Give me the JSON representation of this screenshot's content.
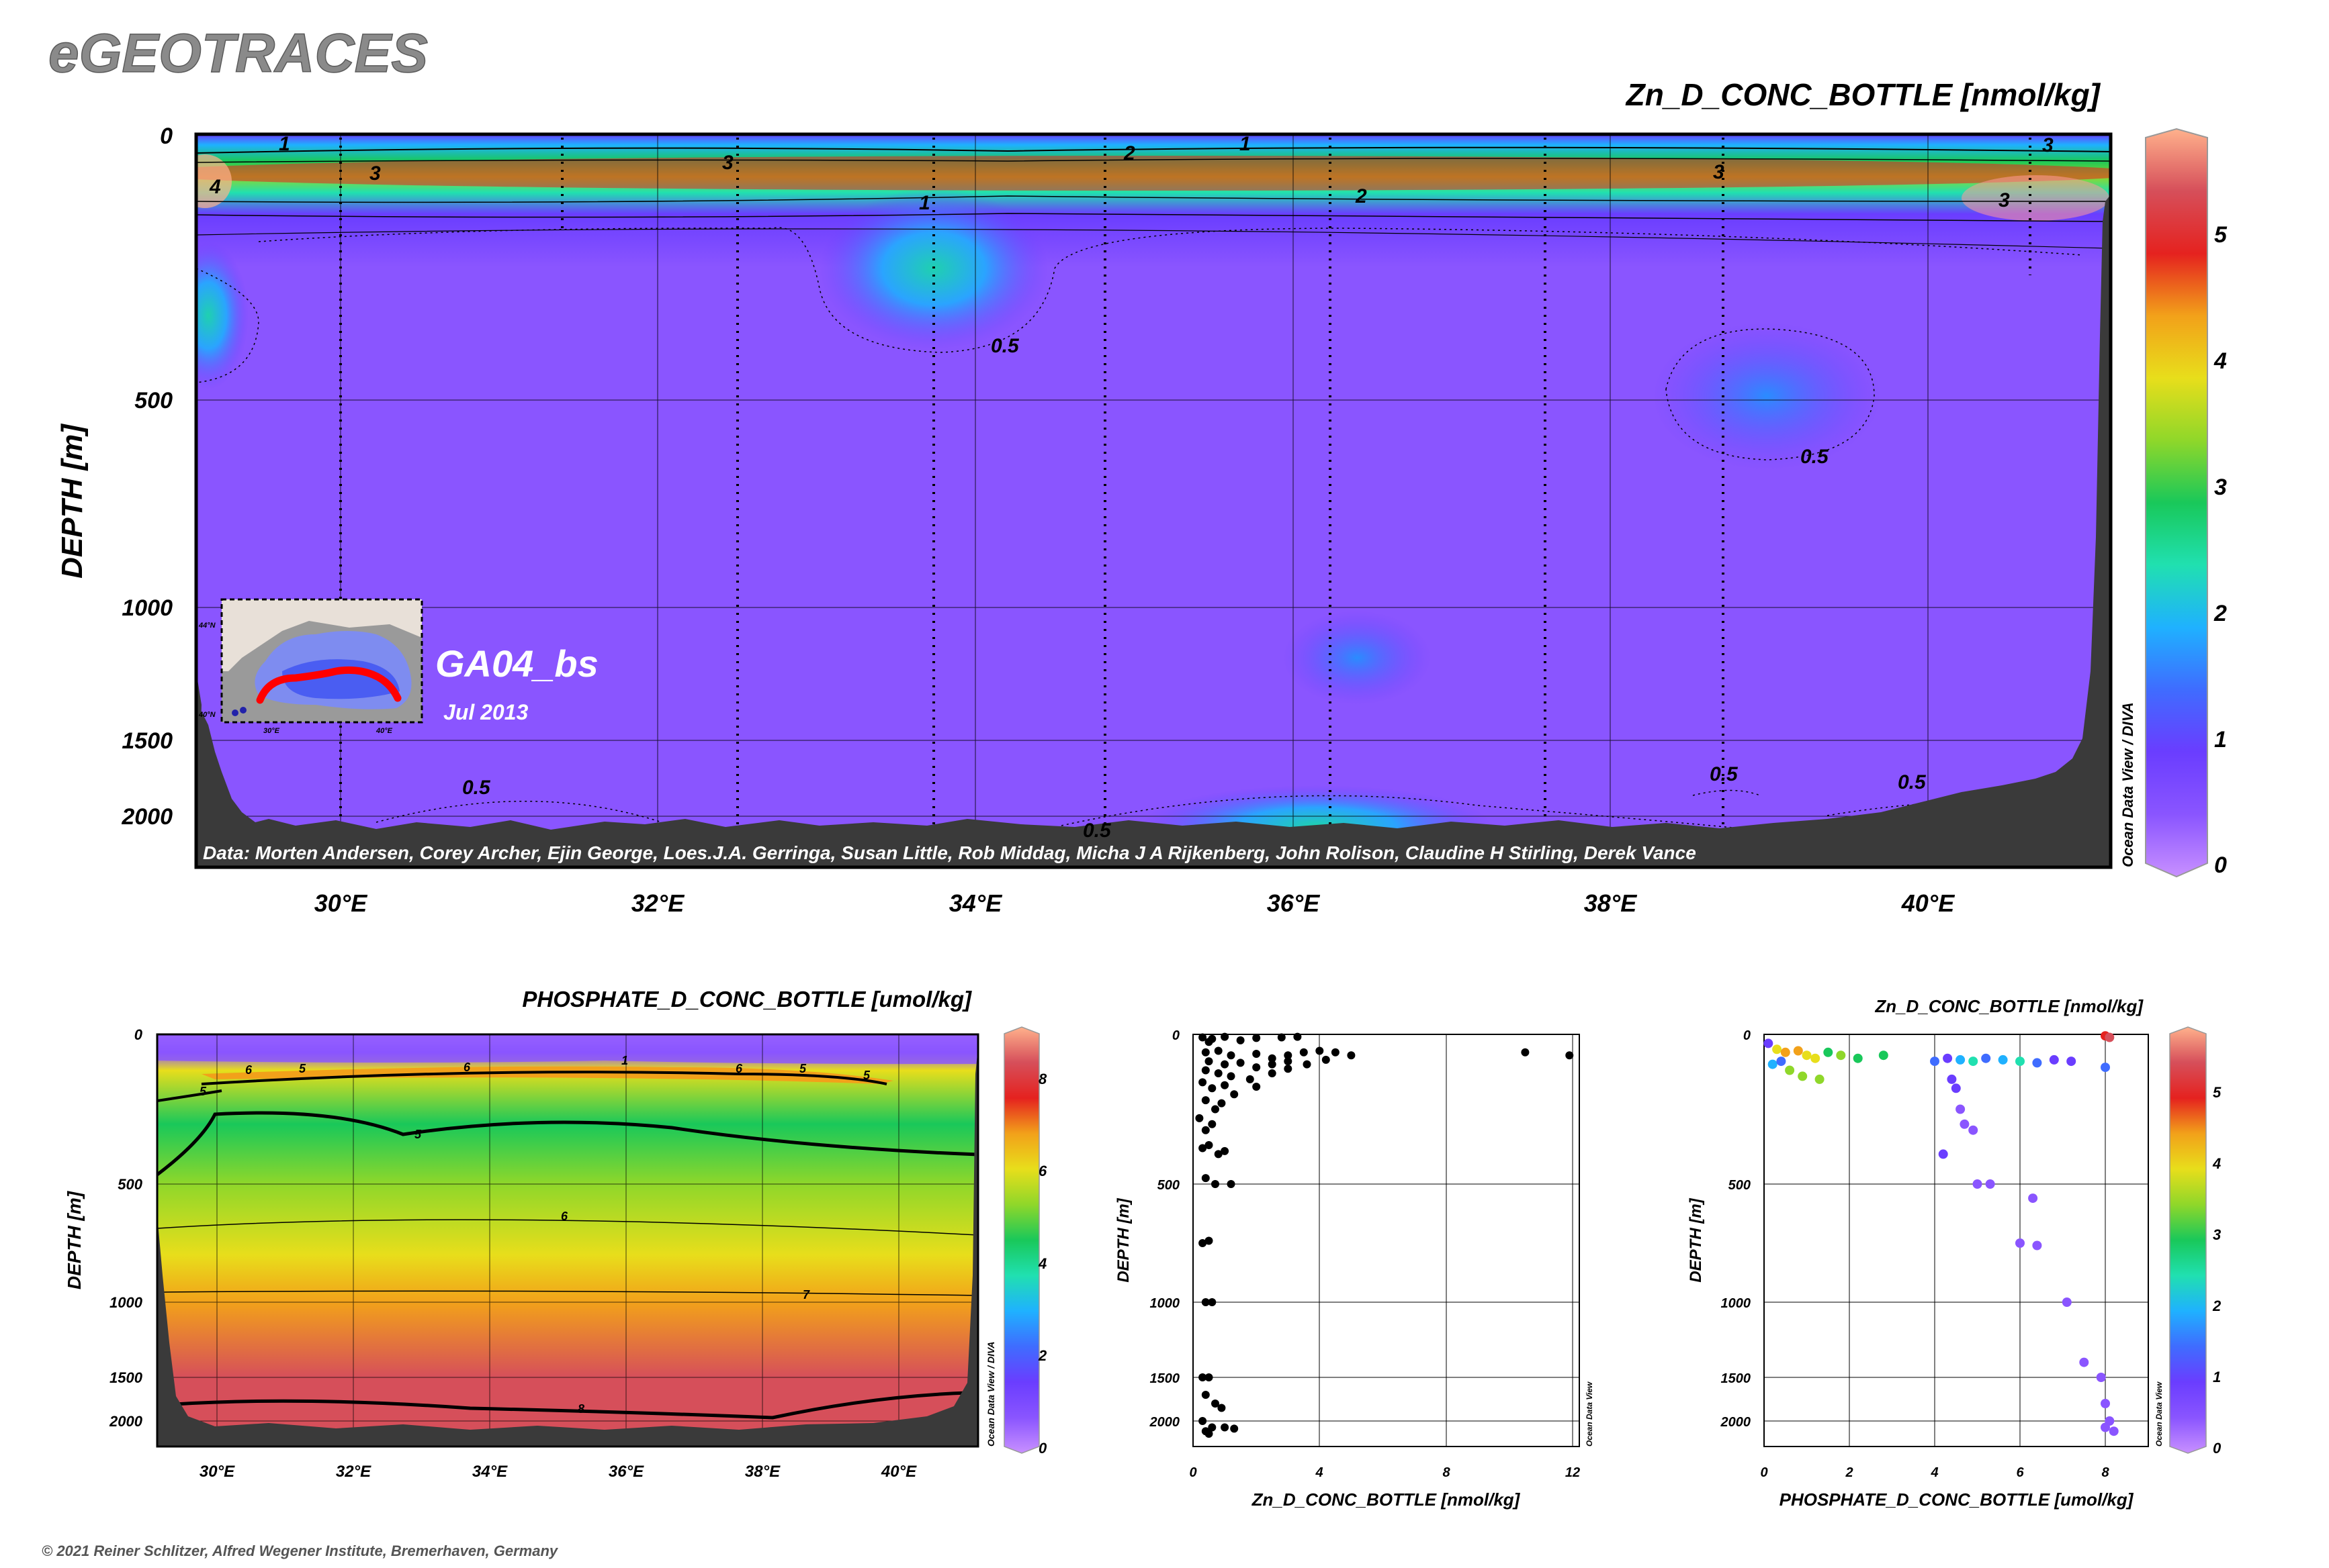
{
  "brand": "eGEOTRACES",
  "copyright": "© 2021 Reiner Schlitzer, Alfred Wegener Institute, Bremerhaven, Germany",
  "colors": {
    "sea_floor": "#3a3a3a",
    "background": "#ffffff",
    "cruise_track": "#ff0000"
  },
  "colormap": [
    "#c890ff",
    "#8a55ff",
    "#6a3dff",
    "#3f6cff",
    "#1fb1ff",
    "#20e0b0",
    "#19c85a",
    "#8fd72a",
    "#e8de1b",
    "#f2a11a",
    "#e5221f",
    "#d64f5a",
    "#ffb18c"
  ],
  "main": {
    "title": "Zn_D_CONC_BOTTLE [nmol/kg]",
    "ylabel": "DEPTH [m]",
    "section_name": "GA04_bs",
    "date": "Jul 2013",
    "credits": "Data: Morten Andersen, Corey Archer, Ejin George, Loes.J.A. Gerringa, Susan Little, Rob Middag, Micha J A Rijkenberg, John Rolison, Claudine H Stirling, Derek Vance",
    "odv_label": "Ocean Data View / DIVA",
    "colorbar_ticks": [
      "0",
      "1",
      "2",
      "3",
      "4",
      "5"
    ],
    "contour_labels": [
      "1",
      "3",
      "4",
      "3",
      "3",
      "1",
      "2",
      "1",
      "2",
      "3",
      "3",
      "2",
      "0.5",
      "0.5",
      "0.5",
      "0.5",
      "0.5",
      "0.5"
    ],
    "inset": {
      "lat_labels": [
        "44°N",
        "40°N"
      ],
      "lon_labels": [
        "30°E",
        "40°E"
      ]
    }
  },
  "chart_data": [
    {
      "type": "heatmap",
      "title": "Zn_D_CONC_BOTTLE [nmol/kg]",
      "xlabel": "",
      "ylabel": "DEPTH [m]",
      "x_ticks": [
        "30°E",
        "32°E",
        "34°E",
        "36°E",
        "38°E",
        "40°E"
      ],
      "y_ticks": [
        "0",
        "500",
        "1000",
        "1500",
        "2000"
      ],
      "xlim": [
        29.1,
        41.1
      ],
      "colorbar_range": [
        0,
        5.8
      ],
      "colorbar_ticks": [
        "0",
        "1",
        "2",
        "3",
        "4",
        "5"
      ],
      "description_values": {
        "depth_m": [
          0,
          20,
          50,
          80,
          110,
          150,
          250,
          500,
          1000,
          2000
        ],
        "zn_nmol_kg": [
          1.2,
          1.8,
          3.0,
          3.4,
          2.2,
          1.0,
          0.45,
          0.45,
          0.45,
          0.55
        ]
      },
      "grid": true
    },
    {
      "type": "heatmap",
      "title": "PHOSPHATE_D_CONC_BOTTLE [umol/kg]",
      "ylabel": "DEPTH [m]",
      "x_ticks": [
        "30°E",
        "32°E",
        "34°E",
        "36°E",
        "38°E",
        "40°E"
      ],
      "y_ticks": [
        "0",
        "500",
        "1000",
        "1500",
        "2000"
      ],
      "colorbar_range": [
        0,
        9
      ],
      "colorbar_ticks": [
        "0",
        "2",
        "4",
        "6",
        "8"
      ],
      "contour_labels": [
        "5",
        "6",
        "5",
        "1",
        "6",
        "5",
        "6",
        "5",
        "5",
        "6",
        "7",
        "8",
        "6",
        "6",
        "6"
      ],
      "odv_label": "Ocean Data View / DIVA",
      "description_values": {
        "depth_m": [
          0,
          60,
          120,
          300,
          500,
          800,
          1000,
          1500,
          2000
        ],
        "phosphate_umol_kg": [
          0.2,
          1.0,
          6.3,
          4.8,
          5.5,
          6.0,
          7.0,
          8.0,
          8.1
        ]
      },
      "grid": true
    },
    {
      "type": "scatter",
      "xlabel": "Zn_D_CONC_BOTTLE [nmol/kg]",
      "ylabel": "DEPTH [m]",
      "x_ticks": [
        "0",
        "4",
        "8",
        "12"
      ],
      "y_ticks": [
        "0",
        "500",
        "1000",
        "1500",
        "2000"
      ],
      "xlim": [
        0,
        12.5
      ],
      "odv_label": "Ocean Data View",
      "points": [
        [
          0.3,
          10
        ],
        [
          0.6,
          15
        ],
        [
          1.0,
          8
        ],
        [
          1.5,
          20
        ],
        [
          2.0,
          12
        ],
        [
          2.8,
          10
        ],
        [
          3.3,
          8
        ],
        [
          0.5,
          25
        ],
        [
          0.4,
          60
        ],
        [
          0.8,
          55
        ],
        [
          1.2,
          70
        ],
        [
          2.0,
          65
        ],
        [
          2.5,
          80
        ],
        [
          3.0,
          70
        ],
        [
          3.5,
          60
        ],
        [
          4.0,
          55
        ],
        [
          4.5,
          60
        ],
        [
          5.0,
          70
        ],
        [
          0.5,
          90
        ],
        [
          1.0,
          100
        ],
        [
          1.5,
          95
        ],
        [
          2.0,
          110
        ],
        [
          2.5,
          100
        ],
        [
          3.0,
          90
        ],
        [
          3.6,
          100
        ],
        [
          4.2,
          85
        ],
        [
          0.4,
          120
        ],
        [
          0.8,
          130
        ],
        [
          1.2,
          140
        ],
        [
          1.8,
          150
        ],
        [
          2.5,
          130
        ],
        [
          3.0,
          115
        ],
        [
          0.3,
          160
        ],
        [
          0.6,
          180
        ],
        [
          1.0,
          170
        ],
        [
          1.3,
          200
        ],
        [
          2.0,
          175
        ],
        [
          0.4,
          220
        ],
        [
          0.7,
          250
        ],
        [
          0.9,
          230
        ],
        [
          0.2,
          280
        ],
        [
          0.4,
          320
        ],
        [
          0.6,
          300
        ],
        [
          0.3,
          380
        ],
        [
          0.5,
          370
        ],
        [
          0.8,
          400
        ],
        [
          1.0,
          390
        ],
        [
          0.4,
          480
        ],
        [
          0.7,
          500
        ],
        [
          1.2,
          500
        ],
        [
          0.3,
          750
        ],
        [
          0.5,
          740
        ],
        [
          0.4,
          1000
        ],
        [
          0.6,
          1000
        ],
        [
          0.3,
          1500
        ],
        [
          0.5,
          1500
        ],
        [
          0.4,
          1700
        ],
        [
          0.7,
          1800
        ],
        [
          0.9,
          1850
        ],
        [
          0.3,
          2000
        ],
        [
          0.6,
          2050
        ],
        [
          1.0,
          2050
        ],
        [
          0.5,
          2100
        ],
        [
          1.3,
          2060
        ],
        [
          0.4,
          2080
        ],
        [
          10.5,
          60
        ],
        [
          11.9,
          70
        ]
      ],
      "grid": true
    },
    {
      "type": "scatter",
      "title": "Zn_D_CONC_BOTTLE [nmol/kg]",
      "xlabel": "PHOSPHATE_D_CONC_BOTTLE [umol/kg]",
      "ylabel": "DEPTH [m]",
      "x_ticks": [
        "0",
        "2",
        "4",
        "6",
        "8"
      ],
      "y_ticks": [
        "0",
        "500",
        "1000",
        "1500",
        "2000"
      ],
      "xlim": [
        0,
        9
      ],
      "colorbar_range": [
        0,
        5.8
      ],
      "colorbar_ticks": [
        "0",
        "1",
        "2",
        "3",
        "4",
        "5"
      ],
      "odv_label": "Ocean Data View",
      "points": [
        [
          0.1,
          30,
          1.0
        ],
        [
          0.3,
          50,
          3.8
        ],
        [
          0.5,
          60,
          4.5
        ],
        [
          0.8,
          55,
          4.2
        ],
        [
          1.0,
          70,
          4.0
        ],
        [
          1.2,
          80,
          3.8
        ],
        [
          1.5,
          60,
          3.0
        ],
        [
          1.8,
          70,
          3.2
        ],
        [
          2.2,
          80,
          2.8
        ],
        [
          2.8,
          70,
          3.0
        ],
        [
          0.6,
          120,
          3.4
        ],
        [
          0.9,
          140,
          3.2
        ],
        [
          1.3,
          150,
          3.3
        ],
        [
          0.2,
          100,
          2.0
        ],
        [
          0.4,
          90,
          1.5
        ],
        [
          4.0,
          90,
          1.5
        ],
        [
          4.3,
          80,
          1.2
        ],
        [
          4.6,
          85,
          2.0
        ],
        [
          4.9,
          90,
          2.5
        ],
        [
          5.2,
          80,
          1.6
        ],
        [
          5.6,
          85,
          1.8
        ],
        [
          6.0,
          90,
          2.2
        ],
        [
          6.4,
          95,
          1.4
        ],
        [
          6.8,
          85,
          1.0
        ],
        [
          7.2,
          90,
          1.2
        ],
        [
          4.4,
          150,
          0.8
        ],
        [
          4.5,
          180,
          1.0
        ],
        [
          4.6,
          250,
          0.7
        ],
        [
          4.7,
          300,
          0.6
        ],
        [
          4.9,
          320,
          0.5
        ],
        [
          4.2,
          400,
          1.1
        ],
        [
          5.0,
          500,
          0.5
        ],
        [
          5.3,
          500,
          0.4
        ],
        [
          6.3,
          560,
          0.4
        ],
        [
          6.0,
          750,
          0.5
        ],
        [
          6.4,
          760,
          0.4
        ],
        [
          7.1,
          1000,
          0.4
        ],
        [
          7.5,
          1400,
          0.4
        ],
        [
          7.9,
          1500,
          0.5
        ],
        [
          8.0,
          1800,
          0.5
        ],
        [
          8.1,
          2000,
          0.6
        ],
        [
          8.0,
          2050,
          0.6
        ],
        [
          8.2,
          2080,
          0.7
        ],
        [
          8.0,
          5,
          5.0
        ],
        [
          8.1,
          10,
          5.2
        ],
        [
          8.0,
          110,
          1.5
        ]
      ],
      "grid": true
    }
  ]
}
